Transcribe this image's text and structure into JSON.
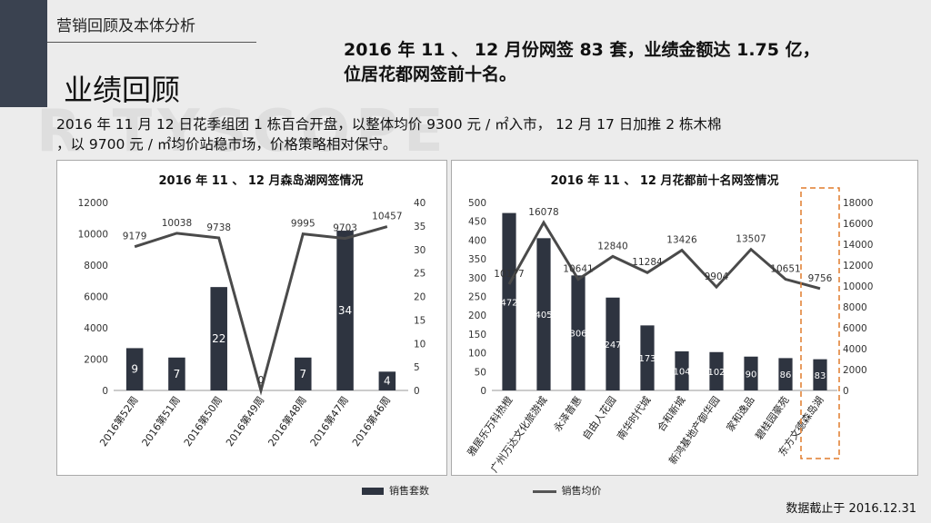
{
  "section_title": "营销回顾及本体分析",
  "main_title": "业绩回顾",
  "headline_line1": "2016 年 11 、 12 月份网签 83 套，业绩金额达 1.75 亿，",
  "headline_line2": "位居花都网签前十名。",
  "intro_line1": "2016 年 11 月 12 日花季组团 1 栋百合开盘，以整体均价 9300 元 / ㎡入市， 12 月 17 日加推 2 栋木棉",
  "intro_line2": "，以 9700 元 / ㎡均价站稳市场，价格策略相对保守。",
  "watermark_1": "R TYSCOPE",
  "watermark_2": "CI",
  "legend": {
    "bar": "销售套数",
    "line": "销售均价"
  },
  "cutoff_note": "数据截止于 2016.12.31",
  "colors": {
    "bar": "#2e3440",
    "line": "#4a4a4a",
    "highlight": "#e07b2c"
  },
  "chart_data": [
    {
      "type": "bar",
      "title": "2016 年 11 、 12 月森岛湖网签情况",
      "categories": [
        "2016第52周",
        "2016第51周",
        "2016第50周",
        "2016第49周",
        "2016第48周",
        "2016第47周",
        "2016第46周"
      ],
      "series": [
        {
          "name": "销售套数",
          "type": "bar",
          "axis": "right",
          "values": [
            9,
            7,
            22,
            0,
            7,
            34,
            4
          ]
        },
        {
          "name": "销售均价",
          "type": "line",
          "axis": "left",
          "values": [
            9179,
            10038,
            9738,
            0,
            9995,
            9703,
            10457
          ]
        }
      ],
      "left_axis": {
        "min": 0,
        "max": 12000,
        "ticks": [
          0,
          2000,
          4000,
          6000,
          8000,
          10000,
          12000
        ]
      },
      "right_axis": {
        "min": 0,
        "max": 40,
        "ticks": [
          0,
          5,
          10,
          15,
          20,
          25,
          30,
          35,
          40
        ]
      }
    },
    {
      "type": "bar",
      "title": "2016 年 11 、 12 月花都前十名网签情况",
      "categories": [
        "雅居乐万科热橙",
        "广州万达文化旅游城",
        "永泽普惠",
        "自由人花园",
        "南华时代城",
        "合和新城",
        "新鸿基地产御华园",
        "家和逸品",
        "碧桂园豪苑",
        "东方文德森岛湖"
      ],
      "series": [
        {
          "name": "销售套数",
          "type": "bar",
          "axis": "left",
          "values": [
            472,
            405,
            306,
            247,
            173,
            104,
            102,
            90,
            86,
            83
          ]
        },
        {
          "name": "销售均价",
          "type": "line",
          "axis": "right",
          "values": [
            10177,
            16078,
            10641,
            12840,
            11284,
            13426,
            9904,
            13507,
            10651,
            9756
          ]
        }
      ],
      "left_axis": {
        "min": 0,
        "max": 500,
        "ticks": [
          0,
          50,
          100,
          150,
          200,
          250,
          300,
          350,
          400,
          450,
          500
        ]
      },
      "right_axis": {
        "min": 0,
        "max": 18000,
        "ticks": [
          0,
          2000,
          4000,
          6000,
          8000,
          10000,
          12000,
          14000,
          16000,
          18000
        ]
      },
      "highlight_category": "东方文德森岛湖"
    }
  ]
}
